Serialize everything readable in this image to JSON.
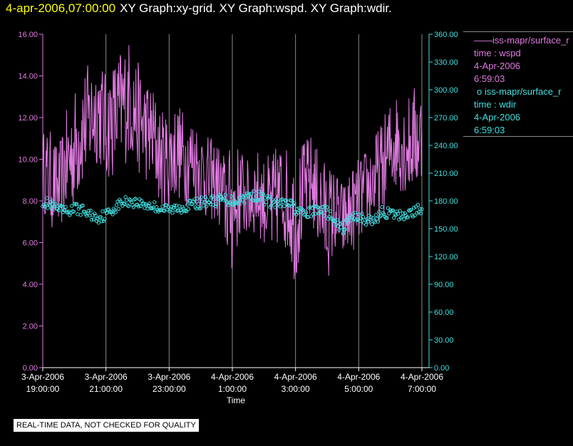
{
  "header": {
    "timestamp": "4-apr-2006,07:00:00",
    "titles": "XY Graph:xy-grid.  XY Graph:wspd.  XY Graph:wdir."
  },
  "legend": {
    "wspd": {
      "line_marker": "——",
      "name": "iss-mapr/surface_r",
      "var": "time : wspd",
      "date": "4-Apr-2006",
      "time": "6:59:03"
    },
    "wdir": {
      "marker": "o",
      "name": "iss-mapr/surface_r",
      "var": "time : wdir",
      "date": "4-Apr-2006",
      "time": "6:59:03"
    }
  },
  "notice": "REAL-TIME DATA, NOT CHECKED FOR QUALITY",
  "colors": {
    "wspd": "#e07ae0",
    "wdir": "#40e0e0",
    "grid": "#8a8a8a",
    "header_ts": "#ffff00"
  },
  "chart_data": {
    "type": "line",
    "xlabel": "Time",
    "x_ticks": [
      {
        "l1": "3-Apr-2006",
        "l2": "19:00:00",
        "h": 0
      },
      {
        "l1": "3-Apr-2006",
        "l2": "21:00:00",
        "h": 2
      },
      {
        "l1": "3-Apr-2006",
        "l2": "23:00:00",
        "h": 4
      },
      {
        "l1": "4-Apr-2006",
        "l2": "1:00:00",
        "h": 6
      },
      {
        "l1": "4-Apr-2006",
        "l2": "3:00:00",
        "h": 8
      },
      {
        "l1": "4-Apr-2006",
        "l2": "5:00:00",
        "h": 10
      },
      {
        "l1": "4-Apr-2006",
        "l2": "7:00:00",
        "h": 12
      }
    ],
    "xlim_hours": [
      0,
      12
    ],
    "y_left": {
      "ticks": [
        "0.00",
        "2.00",
        "4.00",
        "6.00",
        "8.00",
        "10.00",
        "12.00",
        "14.00",
        "16.00"
      ],
      "lim": [
        0,
        16
      ]
    },
    "y_right": {
      "ticks": [
        "0.00",
        "30.00",
        "60.00",
        "90.00",
        "120.00",
        "150.00",
        "180.00",
        "210.00",
        "240.00",
        "270.00",
        "300.00",
        "330.00",
        "360.00"
      ],
      "lim": [
        0,
        360
      ]
    },
    "series": [
      {
        "key": "wspd",
        "axis": "left",
        "style": "line",
        "x": [
          0,
          0.25,
          0.5,
          0.75,
          1,
          1.25,
          1.5,
          1.75,
          2,
          2.25,
          2.5,
          2.75,
          3,
          3.25,
          3.5,
          3.75,
          4,
          4.25,
          4.5,
          4.75,
          5,
          5.25,
          5.5,
          5.75,
          6,
          6.25,
          6.5,
          6.75,
          7,
          7.25,
          7.5,
          7.75,
          8,
          8.25,
          8.5,
          8.75,
          9,
          9.25,
          9.5,
          9.75,
          10,
          10.25,
          10.5,
          10.75,
          11,
          11.25,
          11.5,
          11.75,
          12
        ],
        "y": [
          9.5,
          9.0,
          8.5,
          9.8,
          10.5,
          11.5,
          12.0,
          12.5,
          11.5,
          12.0,
          12.5,
          13.0,
          12.0,
          11.5,
          11.0,
          10.0,
          10.0,
          10.5,
          10.0,
          10.0,
          9.5,
          9.0,
          9.0,
          8.0,
          7.5,
          8.5,
          8.0,
          8.5,
          8.0,
          7.5,
          8.5,
          8.0,
          7.0,
          8.5,
          9.0,
          8.0,
          7.0,
          7.5,
          7.0,
          7.5,
          8.0,
          8.5,
          9.0,
          9.5,
          10.5,
          11.0,
          10.5,
          11.0,
          11.0
        ],
        "amplitude": [
          1.2,
          1.5,
          1.3,
          1.6,
          1.8,
          1.8,
          1.7,
          1.7,
          1.6,
          1.8,
          1.9,
          1.8,
          1.7,
          1.6,
          1.6,
          1.5,
          1.5,
          1.5,
          1.4,
          1.4,
          1.3,
          1.3,
          1.2,
          1.5,
          2.0,
          1.4,
          1.2,
          1.3,
          1.3,
          1.8,
          1.5,
          1.6,
          1.9,
          1.5,
          1.4,
          1.5,
          1.8,
          1.3,
          1.2,
          1.3,
          1.3,
          1.3,
          1.4,
          1.5,
          1.5,
          1.5,
          1.5,
          1.6,
          1.6
        ]
      },
      {
        "key": "wdir",
        "axis": "right",
        "style": "markers",
        "x": [
          0,
          0.25,
          0.5,
          0.75,
          1,
          1.25,
          1.5,
          1.75,
          2,
          2.25,
          2.5,
          2.75,
          3,
          3.25,
          3.5,
          3.75,
          4,
          4.25,
          4.5,
          4.75,
          5,
          5.25,
          5.5,
          5.75,
          6,
          6.25,
          6.5,
          6.75,
          7,
          7.25,
          7.5,
          7.75,
          8,
          8.25,
          8.5,
          8.75,
          9,
          9.25,
          9.5,
          9.75,
          10,
          10.25,
          10.5,
          10.75,
          11,
          11.25,
          11.5,
          11.75,
          12
        ],
        "y": [
          180,
          175,
          170,
          168,
          172,
          170,
          165,
          162,
          165,
          172,
          178,
          180,
          178,
          176,
          174,
          172,
          170,
          172,
          174,
          176,
          178,
          180,
          180,
          182,
          180,
          182,
          185,
          186,
          182,
          178,
          176,
          178,
          172,
          165,
          168,
          172,
          168,
          155,
          150,
          162,
          164,
          158,
          160,
          168,
          166,
          164,
          166,
          168,
          172
        ]
      }
    ]
  }
}
